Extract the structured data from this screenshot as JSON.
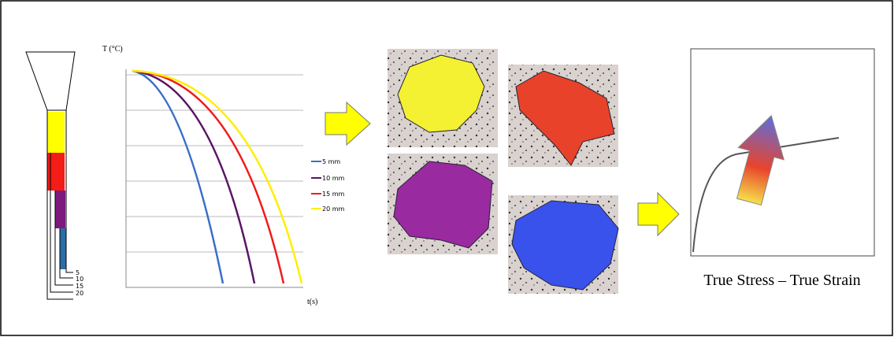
{
  "specimen": {
    "labels": [
      "5",
      "10",
      "15",
      "20"
    ]
  },
  "cooling_chart": {
    "y_label": "T (°C)",
    "x_label": "t(s)",
    "legend": [
      "5 mm",
      "10 mm",
      "15 mm",
      "20 mm"
    ]
  },
  "stress_strain": {
    "caption": "True Stress – True Strain"
  }
}
